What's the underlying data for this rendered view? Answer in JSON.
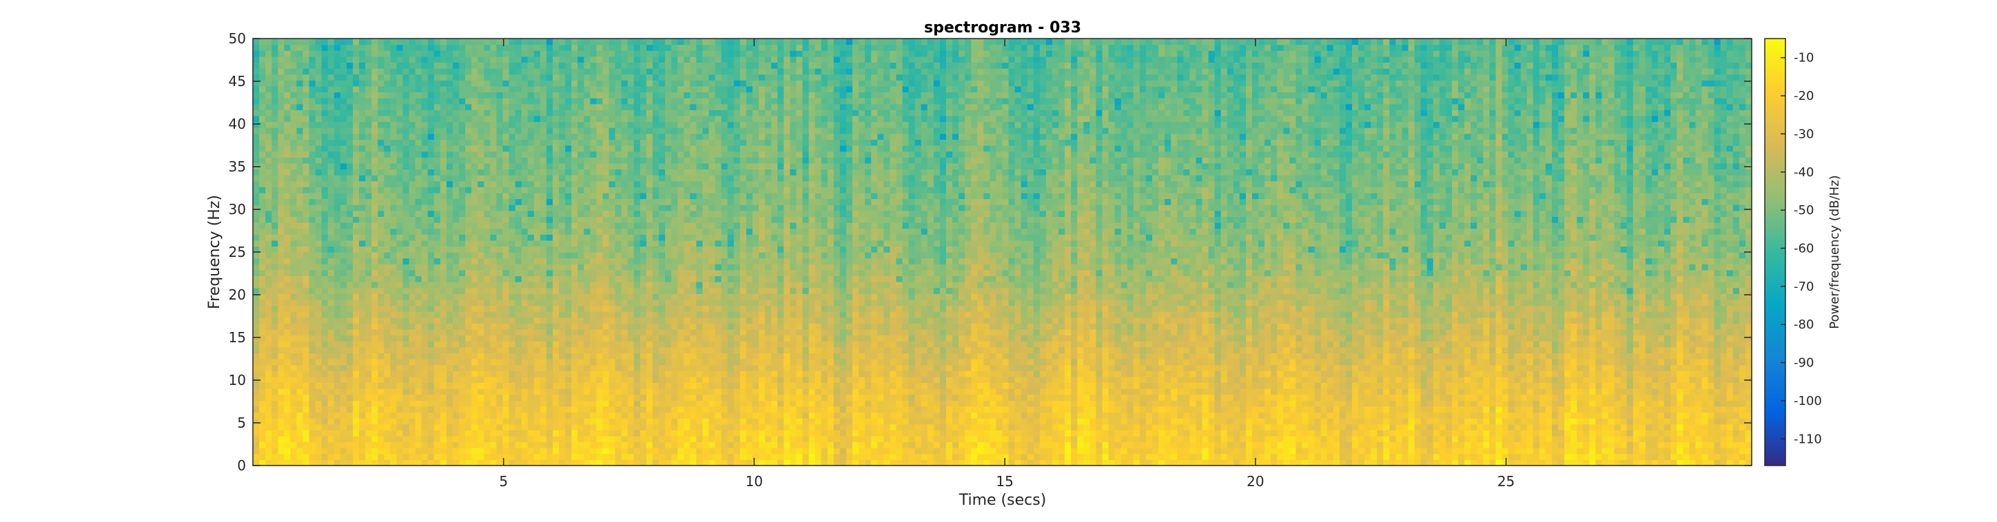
{
  "chart_data": {
    "type": "heatmap",
    "title": "spectrogram - 033",
    "xlabel": "Time (secs)",
    "ylabel": "Frequency (Hz)",
    "xlim": [
      0,
      29.9
    ],
    "ylim": [
      0,
      50
    ],
    "x_ticks": [
      5,
      10,
      15,
      20,
      25
    ],
    "y_ticks": [
      0,
      5,
      10,
      15,
      20,
      25,
      30,
      35,
      40,
      45,
      50
    ],
    "grid": false,
    "colormap": "parula",
    "colorbar": {
      "label": "Power/frequency (dB/Hz)",
      "clim": [
        -117,
        -5
      ],
      "ticks": [
        -10,
        -20,
        -30,
        -40,
        -50,
        -60,
        -70,
        -80,
        -90,
        -100,
        -110
      ]
    },
    "power_profile_db": [
      {
        "frequency_hz": 0,
        "power_db": -18
      },
      {
        "frequency_hz": 5,
        "power_db": -22
      },
      {
        "frequency_hz": 10,
        "power_db": -27
      },
      {
        "frequency_hz": 15,
        "power_db": -34
      },
      {
        "frequency_hz": 20,
        "power_db": -40
      },
      {
        "frequency_hz": 25,
        "power_db": -46
      },
      {
        "frequency_hz": 30,
        "power_db": -49
      },
      {
        "frequency_hz": 35,
        "power_db": -51
      },
      {
        "frequency_hz": 40,
        "power_db": -53
      },
      {
        "frequency_hz": 45,
        "power_db": -55
      },
      {
        "frequency_hz": 50,
        "power_db": -57
      }
    ],
    "colors": {
      "parula": [
        "#352a87",
        "#0363e1",
        "#1485d4",
        "#06a7c6",
        "#38b99e",
        "#92bf73",
        "#d9ba56",
        "#fcce2e",
        "#f9fb0e"
      ]
    }
  }
}
